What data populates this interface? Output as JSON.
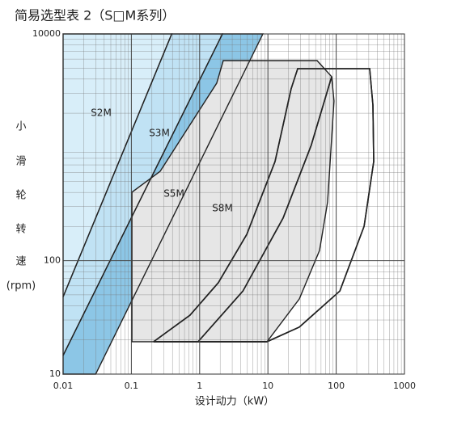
{
  "chart_data": {
    "type": "region",
    "title": "简易选型表 2（S□M系列）",
    "x_label": "设计动力（kW）",
    "y_label": [
      "小",
      "滑",
      "轮",
      "转",
      "速",
      "(rpm)"
    ],
    "log_x": true,
    "log_y": true,
    "grid": true,
    "xlim": [
      0.01,
      1000
    ],
    "ylim": [
      10,
      10000
    ],
    "xticks": [
      0.01,
      0.1,
      1,
      10,
      100,
      1000
    ],
    "yticks": [
      10,
      100,
      10000
    ],
    "series": [
      {
        "name": "S2M",
        "color": "#d8eef9",
        "filled": true,
        "x": [
          0.01,
          0.39,
          0.01
        ],
        "y": [
          48,
          10000,
          10000
        ]
      },
      {
        "name": "S3M",
        "color": "#c0e2f4",
        "filled": true,
        "x": [
          0.01,
          2.16,
          0.39,
          0.01
        ],
        "y": [
          14.6,
          10000,
          10000,
          48
        ]
      },
      {
        "name": "S5M",
        "color": "#8cc6e6",
        "filled": true,
        "x": [
          0.03,
          8.45,
          2.16,
          0.01,
          0.01
        ],
        "y": [
          10,
          10000,
          10000,
          14.6,
          10
        ]
      },
      {
        "name": "S8M",
        "color": "#e6e6e6",
        "filled": true,
        "x": [
          0.102,
          0.102,
          0.264,
          1.78,
          2.22,
          52.5,
          85.9,
          93,
          74.8,
          57,
          28.8,
          9.7
        ],
        "y": [
          19.3,
          402,
          615,
          3680,
          5820,
          5820,
          4200,
          2560,
          330,
          123,
          46,
          19.3
        ]
      },
      {
        "color": "#222222",
        "filled": false,
        "x": [
          0.212,
          0.72,
          1.88,
          4.9,
          12.7,
          21.9,
          27.3,
          309,
          345,
          355,
          256,
          113,
          28.8,
          9.7,
          0.212
        ],
        "y": [
          19.3,
          33,
          64,
          171,
          750,
          3280,
          4940,
          4940,
          2360,
          750,
          201,
          54,
          26,
          19.3,
          19.3
        ]
      },
      {
        "color": "#222222",
        "filled": false,
        "x": [
          0.95,
          4.3,
          16.7,
          43,
          85.9
        ],
        "y": [
          19.3,
          54,
          238,
          1040,
          4200
        ]
      }
    ]
  }
}
